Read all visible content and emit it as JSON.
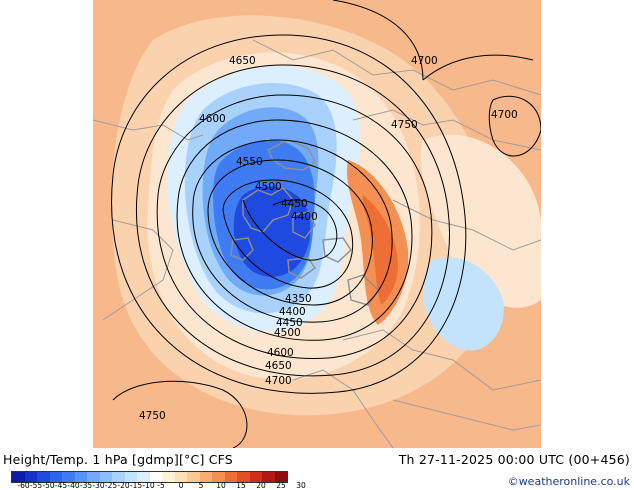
{
  "footer": {
    "title": "Height/Temp. 1 hPa [gdmp][°C] CFS",
    "valid_time": "Th 27-11-2025 00:00 UTC (00+456)",
    "credit": "©weatheronline.co.uk"
  },
  "legend": {
    "colors": [
      "#0c1ea8",
      "#1533c8",
      "#1f4ae0",
      "#2e63ee",
      "#3f7cf4",
      "#5694f6",
      "#70aaf8",
      "#8cbff9",
      "#a8d2fb",
      "#c3e2fc",
      "#dcefff",
      "#ffffff",
      "#fff1d8",
      "#fde0b8",
      "#fbc996",
      "#f8ae72",
      "#f49052",
      "#ee6f36",
      "#e44e23",
      "#d12f17",
      "#b31812",
      "#8e0e0d"
    ],
    "tick_labels": [
      "-60",
      "-55",
      "-50",
      "-45",
      "-40",
      "-35",
      "-30",
      "-25",
      "-20",
      "-15",
      "-10",
      "-5",
      "0",
      "5",
      "10",
      "15",
      "20",
      "25",
      "30"
    ]
  },
  "map": {
    "contour_labels": [
      "4650",
      "4700",
      "4750",
      "4700",
      "4600",
      "4550",
      "4500",
      "4450",
      "4400",
      "4350",
      "4400",
      "4450",
      "4500",
      "4600",
      "4650",
      "4700",
      "4750"
    ]
  }
}
